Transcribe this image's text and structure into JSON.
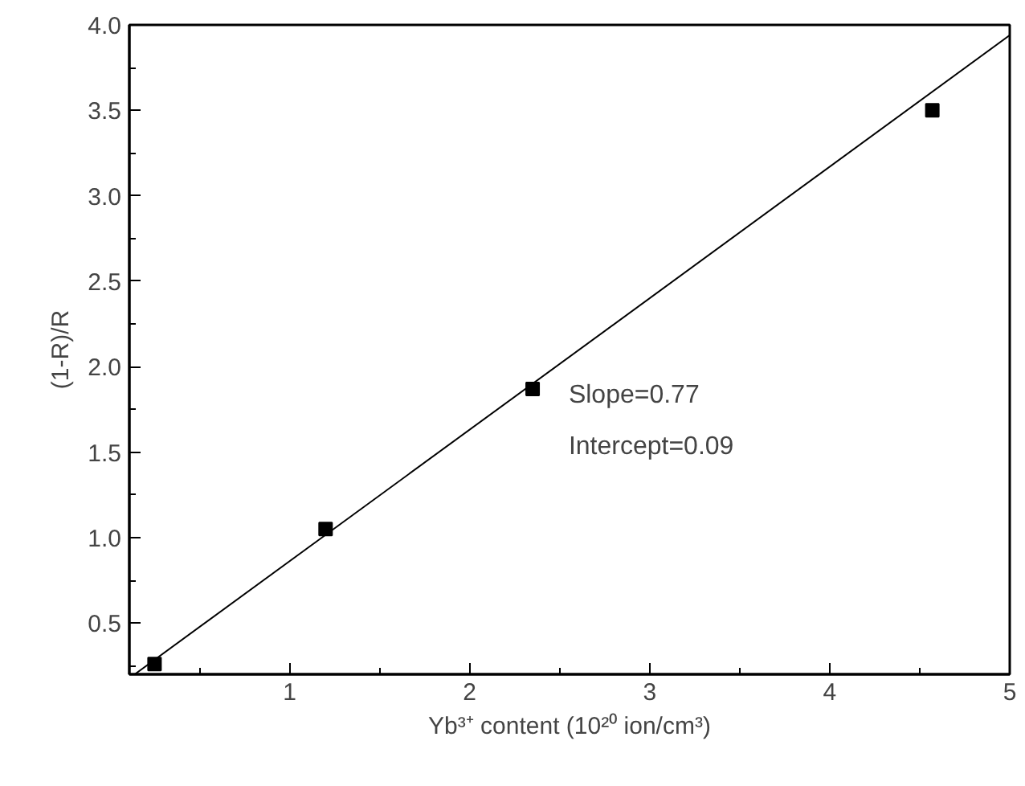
{
  "chart_data": {
    "type": "scatter",
    "xlabel": "Yb³⁺ content (10²⁰ ion/cm³)",
    "ylabel": "(1-R)/R",
    "xlim": [
      0.11,
      5
    ],
    "ylim": [
      0.2,
      4.0
    ],
    "xticks": [
      1,
      2,
      3,
      4,
      5
    ],
    "yticks": [
      0.5,
      {
        "value": 1,
        "label": "1.0"
      },
      1.5,
      {
        "value": 2,
        "label": "2.0"
      },
      2.5,
      {
        "value": 3,
        "label": "3.0"
      },
      3.5,
      {
        "value": 4,
        "label": "4.0"
      }
    ],
    "grid": false,
    "series": [
      {
        "marker": "square",
        "color": "#000000",
        "x": [
          0.25,
          1.2,
          2.35,
          4.57
        ],
        "values": [
          0.26,
          1.05,
          1.87,
          3.5
        ]
      },
      {
        "type": "line",
        "marker": "none",
        "color": "#000000",
        "x": [
          0.14,
          5
        ],
        "values": [
          0.2,
          3.94
        ]
      }
    ],
    "annotations": [
      "Slope=0.77",
      "Intercept=0.09"
    ]
  }
}
